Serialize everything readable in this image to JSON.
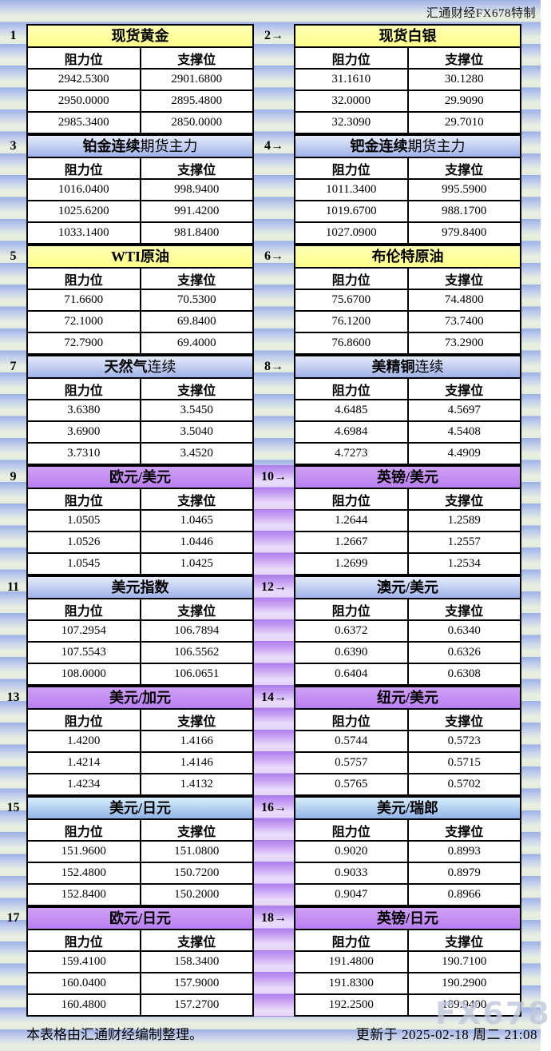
{
  "page": {
    "brand": "汇通财经FX678特制",
    "footer_left": "本表格由汇通财经编制整理。",
    "footer_right": "更新于 2025-02-18 周二 21:08",
    "watermark": "FX678"
  },
  "colors": {
    "header_yellow": "#FFFF99",
    "header_blue_top": "#E6ECFC",
    "header_blue_bottom": "#9FB1E7",
    "header_skyblue_top": "#D8EEFC",
    "header_skyblue_bottom": "#90B3E6",
    "header_purple_top": "#D0A0F6",
    "header_purple_bottom": "#B87FF0",
    "band_blue": "#9DB0E5",
    "band_pale": "#E9F0E1",
    "band_purple": "#AD7EEC",
    "band_purple_pale": "#EADCFA",
    "table_bg": "#FFFFFF",
    "border": "#000000",
    "text": "#000000"
  },
  "chart_data": {
    "type": "table",
    "columns": [
      "阻力位",
      "支撑位"
    ],
    "tables": [
      {
        "no_label": "1",
        "title": "现货黄金",
        "title_suffix": "",
        "style": "yellow",
        "rows": [
          [
            "2942.5300",
            "2901.6800"
          ],
          [
            "2950.0000",
            "2895.4800"
          ],
          [
            "2985.3400",
            "2850.0000"
          ]
        ]
      },
      {
        "no_label": "2→",
        "title": "现货白银",
        "title_suffix": "",
        "style": "yellow",
        "rows": [
          [
            "31.1610",
            "30.1280"
          ],
          [
            "32.0000",
            "29.9090"
          ],
          [
            "32.3090",
            "29.7010"
          ]
        ]
      },
      {
        "no_label": "3",
        "title": "铂金连续",
        "title_suffix": "期货主力",
        "style": "blue",
        "rows": [
          [
            "1016.0400",
            "998.9400"
          ],
          [
            "1025.6200",
            "991.4200"
          ],
          [
            "1033.1400",
            "981.8400"
          ]
        ]
      },
      {
        "no_label": "4→",
        "title": "钯金连续",
        "title_suffix": "期货主力",
        "style": "blue",
        "rows": [
          [
            "1011.3400",
            "995.5900"
          ],
          [
            "1019.6700",
            "988.1700"
          ],
          [
            "1027.0900",
            "979.8400"
          ]
        ]
      },
      {
        "no_label": "5",
        "title": "WTI原油",
        "title_suffix": "",
        "style": "yellow",
        "rows": [
          [
            "71.6600",
            "70.5300"
          ],
          [
            "72.1000",
            "69.8400"
          ],
          [
            "72.7900",
            "69.4000"
          ]
        ]
      },
      {
        "no_label": "6→",
        "title": "布伦特原油",
        "title_suffix": "",
        "style": "yellow",
        "rows": [
          [
            "75.6700",
            "74.4800"
          ],
          [
            "76.1200",
            "73.7400"
          ],
          [
            "76.8600",
            "73.2900"
          ]
        ]
      },
      {
        "no_label": "7",
        "title": "天然气",
        "title_suffix": "连续",
        "style": "blue",
        "rows": [
          [
            "3.6380",
            "3.5450"
          ],
          [
            "3.6900",
            "3.5040"
          ],
          [
            "3.7310",
            "3.4520"
          ]
        ]
      },
      {
        "no_label": "8→",
        "title": "美精铜",
        "title_suffix": "连续",
        "style": "blue",
        "rows": [
          [
            "4.6485",
            "4.5697"
          ],
          [
            "4.6984",
            "4.5408"
          ],
          [
            "4.7273",
            "4.4909"
          ]
        ]
      },
      {
        "no_label": "9",
        "title": "欧元/美元",
        "title_suffix": "",
        "style": "purple",
        "rows": [
          [
            "1.0505",
            "1.0465"
          ],
          [
            "1.0526",
            "1.0446"
          ],
          [
            "1.0545",
            "1.0425"
          ]
        ]
      },
      {
        "no_label": "10→",
        "title": "英镑/美元",
        "title_suffix": "",
        "style": "purple",
        "rows": [
          [
            "1.2644",
            "1.2589"
          ],
          [
            "1.2667",
            "1.2557"
          ],
          [
            "1.2699",
            "1.2534"
          ]
        ]
      },
      {
        "no_label": "11",
        "title": "美元指数",
        "title_suffix": "",
        "style": "blue",
        "rows": [
          [
            "107.2954",
            "106.7894"
          ],
          [
            "107.5543",
            "106.5562"
          ],
          [
            "108.0000",
            "106.0651"
          ]
        ]
      },
      {
        "no_label": "12→",
        "title": "澳元/美元",
        "title_suffix": "",
        "style": "blue",
        "rows": [
          [
            "0.6372",
            "0.6340"
          ],
          [
            "0.6390",
            "0.6326"
          ],
          [
            "0.6404",
            "0.6308"
          ]
        ]
      },
      {
        "no_label": "13",
        "title": "美元/加元",
        "title_suffix": "",
        "style": "purple",
        "rows": [
          [
            "1.4200",
            "1.4166"
          ],
          [
            "1.4214",
            "1.4146"
          ],
          [
            "1.4234",
            "1.4132"
          ]
        ]
      },
      {
        "no_label": "14→",
        "title": "纽元/美元",
        "title_suffix": "",
        "style": "purple",
        "rows": [
          [
            "0.5744",
            "0.5723"
          ],
          [
            "0.5757",
            "0.5715"
          ],
          [
            "0.5765",
            "0.5702"
          ]
        ]
      },
      {
        "no_label": "15",
        "title": "美元/日元",
        "title_suffix": "",
        "style": "skyblue",
        "rows": [
          [
            "151.9600",
            "151.0800"
          ],
          [
            "152.4800",
            "150.7200"
          ],
          [
            "152.8400",
            "150.2000"
          ]
        ]
      },
      {
        "no_label": "16→",
        "title": "美元/瑞郎",
        "title_suffix": "",
        "style": "skyblue",
        "rows": [
          [
            "0.9020",
            "0.8993"
          ],
          [
            "0.9033",
            "0.8979"
          ],
          [
            "0.9047",
            "0.8966"
          ]
        ]
      },
      {
        "no_label": "17",
        "title": "欧元/日元",
        "title_suffix": "",
        "style": "purple",
        "rows": [
          [
            "159.4100",
            "158.3400"
          ],
          [
            "160.0400",
            "157.9000"
          ],
          [
            "160.4800",
            "157.2700"
          ]
        ]
      },
      {
        "no_label": "18→",
        "title": "英镑/日元",
        "title_suffix": "",
        "style": "purple",
        "rows": [
          [
            "191.4800",
            "190.7100"
          ],
          [
            "191.8300",
            "190.2900"
          ],
          [
            "192.2500",
            "189.9400"
          ]
        ]
      }
    ]
  }
}
